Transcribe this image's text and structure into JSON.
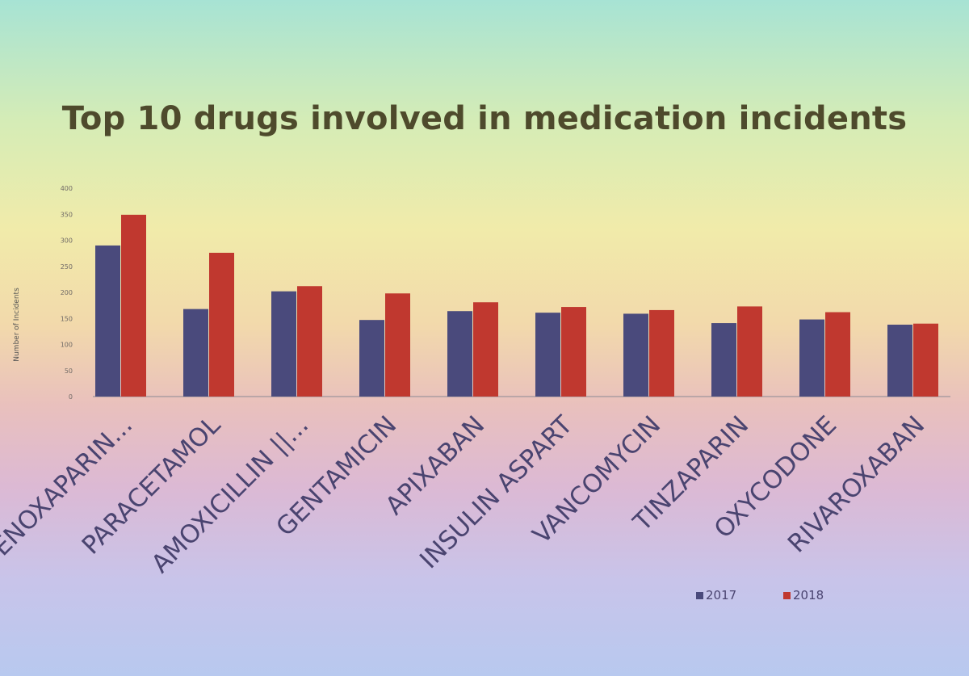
{
  "chart_data": {
    "type": "bar",
    "title": "Top 10 drugs involved in medication incidents",
    "ylabel": "Number of Incidents",
    "xlabel": "",
    "ylim": [
      0,
      400
    ],
    "yticks": [
      "0",
      "50",
      "100",
      "150",
      "200",
      "250",
      "300",
      "350",
      "400"
    ],
    "categories": [
      "ENOXAPARIN...",
      "PARACETAMOL",
      "AMOXICILLIN ||...",
      "GENTAMICIN",
      "APIXABAN",
      "INSULIN ASPART",
      "VANCOMYCIN",
      "TINZAPARIN",
      "OXYCODONE",
      "RIVAROXABAN"
    ],
    "series": [
      {
        "name": "2017",
        "color": "#4a4a7c",
        "values": [
          290,
          168,
          202,
          147,
          164,
          161,
          159,
          141,
          148,
          138
        ]
      },
      {
        "name": "2018",
        "color": "#c0382f",
        "values": [
          349,
          276,
          212,
          198,
          181,
          172,
          166,
          173,
          162,
          140
        ]
      }
    ],
    "grid": false,
    "legend_position": "bottom-right"
  }
}
